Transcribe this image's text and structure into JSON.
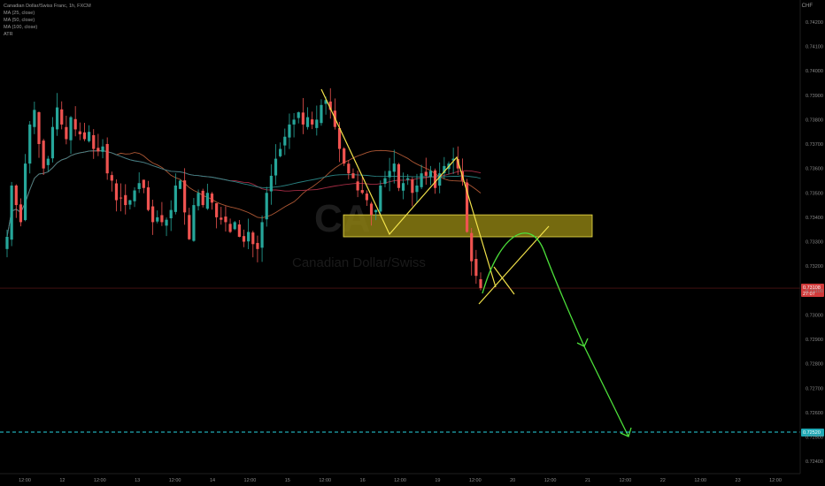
{
  "header": {
    "symbol_line": "Canadian Dollar/Swiss Franc, 1h, FXCM",
    "indicators": [
      "MA (25, close)",
      "MA (50, close)",
      "MA (100, close)",
      "ATR"
    ],
    "currency": "CHF"
  },
  "watermark": {
    "symbol": "CA",
    "name": "Canadian Dollar/Swiss"
  },
  "colors": {
    "bull": "#26a69a",
    "bear": "#ef5350",
    "ma25": "#c0603a",
    "ma50": "#b5304a",
    "ma100": "#2e8f8f",
    "pattern": "#f2e24a",
    "projection": "#4ce03a",
    "target_line": "#29d3e0",
    "zone_fill": "#8a7d12",
    "price_badge": "#d03a3a",
    "target_badge": "#1fa9b5"
  },
  "chart_data": {
    "type": "candlestick",
    "y_axis": {
      "range": [
        0.7235,
        0.7429
      ],
      "ticks": [
        "0.74200",
        "0.74100",
        "0.74000",
        "0.73900",
        "0.73800",
        "0.73700",
        "0.73600",
        "0.73500",
        "0.73400",
        "0.73300",
        "0.73200",
        "0.73100",
        "0.73000",
        "0.72900",
        "0.72800",
        "0.72700",
        "0.72600",
        "0.72500",
        "0.72400"
      ]
    },
    "x_axis": {
      "ticks": [
        "12:00",
        "12",
        "12:00",
        "13",
        "12:00",
        "14",
        "12:00",
        "15",
        "12:00",
        "16",
        "12:00",
        "19",
        "12:00",
        "20",
        "12:00",
        "21",
        "12:00",
        "22",
        "12:00",
        "23",
        "12:00"
      ]
    },
    "current_price": {
      "value": "0.73108",
      "countdown": "27:07",
      "level": 0.7311
    },
    "target_level": {
      "value": "0.72520",
      "level": 0.7252
    },
    "resistance_zone": {
      "from": 0.7332,
      "to": 0.7341
    },
    "series_close": [
      0.7332,
      0.7353,
      0.7345,
      0.7338,
      0.7362,
      0.7378,
      0.7384,
      0.737,
      0.736,
      0.7364,
      0.7377,
      0.7385,
      0.7378,
      0.7372,
      0.7381,
      0.7376,
      0.7374,
      0.7372,
      0.7375,
      0.7368,
      0.7367,
      0.7369,
      0.7358,
      0.7355,
      0.7347,
      0.7348,
      0.7345,
      0.7347,
      0.7351,
      0.7354,
      0.7352,
      0.7343,
      0.7338,
      0.734,
      0.7338,
      0.7339,
      0.7343,
      0.7353,
      0.7355,
      0.7342,
      0.7331,
      0.7345,
      0.735,
      0.7345,
      0.735,
      0.7346,
      0.734,
      0.7339,
      0.7338,
      0.7334,
      0.7338,
      0.7332,
      0.733,
      0.7334,
      0.7329,
      0.7327,
      0.7338,
      0.735,
      0.7357,
      0.7364,
      0.7368,
      0.7373,
      0.7378,
      0.738,
      0.7383,
      0.7378,
      0.7381,
      0.7378,
      0.738,
      0.7386,
      0.7388,
      0.7384,
      0.7377,
      0.7368,
      0.7362,
      0.7358,
      0.7356,
      0.7351,
      0.735,
      0.7347,
      0.7341,
      0.7343,
      0.7353,
      0.7356,
      0.7359,
      0.7362,
      0.7352,
      0.7354,
      0.7356,
      0.735,
      0.7353,
      0.7358,
      0.7357,
      0.7359,
      0.7352,
      0.7358,
      0.7361,
      0.7362,
      0.7364,
      0.736,
      0.7355,
      0.7334,
      0.7322,
      0.7316,
      0.7311
    ]
  }
}
